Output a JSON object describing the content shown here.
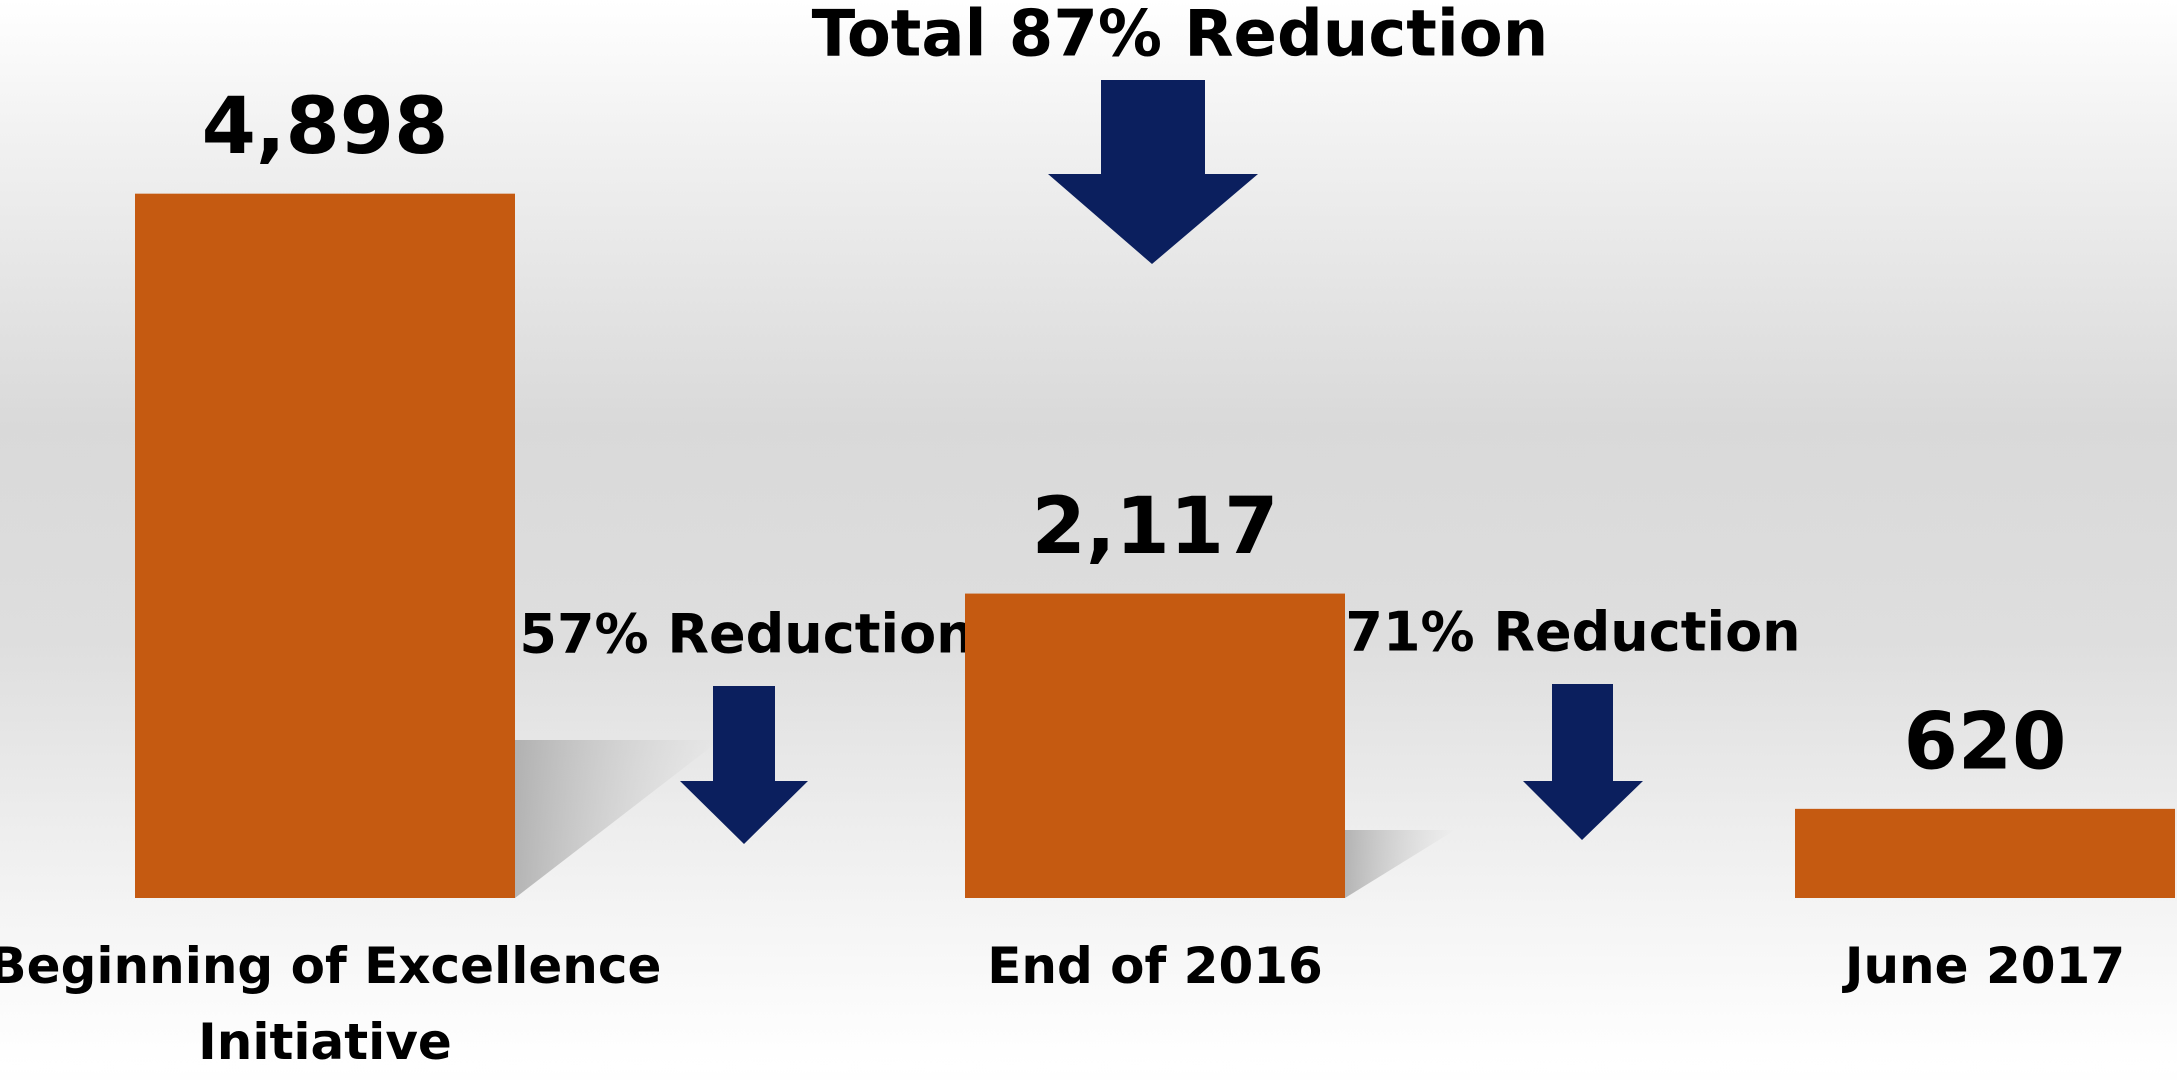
{
  "chart_data": {
    "type": "bar",
    "title": "Total 87% Reduction",
    "annotations": [
      "57% Reduction",
      "71% Reduction"
    ],
    "categories": [
      "Beginning of Excellence Initiative",
      "End of 2016",
      "June 2017"
    ],
    "values": [
      4898,
      2117,
      620
    ],
    "value_labels": [
      "4,898",
      "2,117",
      "620"
    ],
    "color": "#c55a11",
    "ylim": [
      0,
      5000
    ]
  }
}
